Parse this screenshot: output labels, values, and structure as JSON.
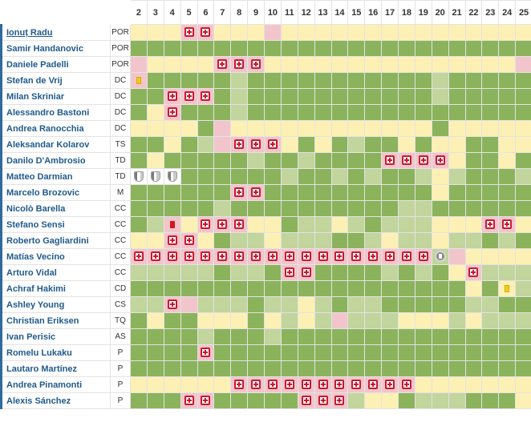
{
  "legend_colors": {
    "played": "#8bb35c",
    "partial": "#c1d59d",
    "bench": "#fdf0b4",
    "absent": "#f2c5cc"
  },
  "icon_types": {
    "I": "injury-icon",
    "Y": "yellow-card-icon",
    "R": "red-card-icon",
    "S": "dismissal-icon",
    "N": "national-team-icon"
  },
  "rounds": [
    "2",
    "3",
    "4",
    "5",
    "6",
    "7",
    "8",
    "9",
    "10",
    "11",
    "12",
    "13",
    "14",
    "15",
    "16",
    "17",
    "18",
    "19",
    "20",
    "21",
    "22",
    "23",
    "24",
    "25"
  ],
  "players": [
    {
      "name": "Ionuț Radu",
      "pos": "POR",
      "cells": [
        "y",
        "y",
        "y",
        "pI",
        "pI",
        "y",
        "y",
        "y",
        "p",
        "y",
        "y",
        "y",
        "y",
        "y",
        "y",
        "y",
        "y",
        "y",
        "y",
        "y",
        "y",
        "y",
        "y",
        "y"
      ]
    },
    {
      "name": "Samir Handanovic",
      "pos": "POR",
      "cells": [
        "g",
        "g",
        "g",
        "g",
        "g",
        "g",
        "g",
        "g",
        "g",
        "g",
        "g",
        "g",
        "g",
        "g",
        "g",
        "g",
        "g",
        "g",
        "g",
        "g",
        "g",
        "g",
        "g",
        "g"
      ]
    },
    {
      "name": "Daniele Padelli",
      "pos": "POR",
      "cells": [
        "p",
        "y",
        "y",
        "y",
        "y",
        "pI",
        "pI",
        "pI",
        "y",
        "y",
        "y",
        "y",
        "y",
        "y",
        "y",
        "y",
        "y",
        "y",
        "y",
        "y",
        "y",
        "y",
        "y",
        "p"
      ]
    },
    {
      "name": "Stefan de Vrij",
      "pos": "DC",
      "cells": [
        "pY",
        "g",
        "g",
        "g",
        "g",
        "g",
        "l",
        "g",
        "g",
        "g",
        "g",
        "g",
        "g",
        "g",
        "g",
        "g",
        "g",
        "g",
        "l",
        "g",
        "g",
        "g",
        "g",
        "g"
      ]
    },
    {
      "name": "Milan Skriniar",
      "pos": "DC",
      "cells": [
        "g",
        "g",
        "pI",
        "pI",
        "pI",
        "g",
        "l",
        "g",
        "g",
        "g",
        "g",
        "g",
        "g",
        "g",
        "g",
        "g",
        "g",
        "g",
        "l",
        "g",
        "g",
        "g",
        "g",
        "g"
      ]
    },
    {
      "name": "Alessandro Bastoni",
      "pos": "DC",
      "cells": [
        "g",
        "y",
        "pI",
        "g",
        "g",
        "g",
        "l",
        "g",
        "g",
        "g",
        "g",
        "g",
        "g",
        "g",
        "g",
        "g",
        "g",
        "g",
        "g",
        "g",
        "g",
        "g",
        "g",
        "g"
      ]
    },
    {
      "name": "Andrea Ranocchia",
      "pos": "DC",
      "cells": [
        "y",
        "y",
        "y",
        "y",
        "g",
        "p",
        "y",
        "y",
        "y",
        "y",
        "y",
        "y",
        "y",
        "y",
        "y",
        "y",
        "y",
        "y",
        "g",
        "y",
        "y",
        "y",
        "y",
        "y"
      ]
    },
    {
      "name": "Aleksandar Kolarov",
      "pos": "TS",
      "cells": [
        "g",
        "g",
        "y",
        "g",
        "l",
        "p",
        "pI",
        "pI",
        "pI",
        "y",
        "g",
        "y",
        "g",
        "l",
        "g",
        "g",
        "y",
        "g",
        "y",
        "y",
        "g",
        "g",
        "y",
        "y"
      ]
    },
    {
      "name": "Danilo D'Ambrosio",
      "pos": "TD",
      "cells": [
        "g",
        "y",
        "g",
        "g",
        "g",
        "g",
        "g",
        "l",
        "g",
        "g",
        "l",
        "g",
        "g",
        "g",
        "g",
        "pI",
        "pI",
        "pI",
        "pI",
        "y",
        "g",
        "g",
        "y",
        "g"
      ]
    },
    {
      "name": "Matteo Darmian",
      "pos": "TD",
      "cells": [
        "wN",
        "wN",
        "wN",
        "g",
        "g",
        "g",
        "g",
        "g",
        "g",
        "l",
        "g",
        "g",
        "l",
        "g",
        "l",
        "g",
        "g",
        "l",
        "y",
        "l",
        "g",
        "g",
        "g",
        "l"
      ]
    },
    {
      "name": "Marcelo Brozovic",
      "pos": "M",
      "cells": [
        "g",
        "g",
        "g",
        "g",
        "g",
        "g",
        "pI",
        "pI",
        "g",
        "g",
        "g",
        "g",
        "g",
        "g",
        "g",
        "g",
        "g",
        "g",
        "y",
        "g",
        "g",
        "g",
        "g",
        "g"
      ]
    },
    {
      "name": "Nicolò Barella",
      "pos": "CC",
      "cells": [
        "g",
        "g",
        "g",
        "g",
        "g",
        "l",
        "g",
        "g",
        "g",
        "g",
        "g",
        "g",
        "g",
        "g",
        "g",
        "g",
        "l",
        "l",
        "g",
        "g",
        "g",
        "g",
        "g",
        "g"
      ]
    },
    {
      "name": "Stefano Sensi",
      "pos": "CC",
      "cells": [
        "g",
        "l",
        "pR",
        "y",
        "pI",
        "pI",
        "pI",
        "y",
        "y",
        "g",
        "l",
        "l",
        "y",
        "l",
        "g",
        "l",
        "l",
        "l",
        "y",
        "y",
        "y",
        "pI",
        "pI",
        "y"
      ]
    },
    {
      "name": "Roberto Gagliardini",
      "pos": "CC",
      "cells": [
        "y",
        "y",
        "pI",
        "pI",
        "y",
        "g",
        "l",
        "l",
        "y",
        "l",
        "l",
        "l",
        "g",
        "g",
        "l",
        "y",
        "l",
        "l",
        "y",
        "l",
        "l",
        "g",
        "l",
        "g"
      ]
    },
    {
      "name": "Matías Vecino",
      "pos": "CC",
      "cells": [
        "pI",
        "pI",
        "pI",
        "pI",
        "pI",
        "pI",
        "pI",
        "pI",
        "pI",
        "pI",
        "pI",
        "pI",
        "pI",
        "pI",
        "pI",
        "pI",
        "pI",
        "pI",
        "lS",
        "p",
        "y",
        "y",
        "y",
        "y"
      ]
    },
    {
      "name": "Arturo Vidal",
      "pos": "CC",
      "cells": [
        "l",
        "l",
        "l",
        "l",
        "l",
        "g",
        "l",
        "l",
        "g",
        "pI",
        "pI",
        "g",
        "g",
        "g",
        "g",
        "l",
        "g",
        "l",
        "g",
        "y",
        "pI",
        "l",
        "l",
        "l"
      ]
    },
    {
      "name": "Achraf Hakimi",
      "pos": "CD",
      "cells": [
        "g",
        "g",
        "g",
        "g",
        "g",
        "g",
        "g",
        "g",
        "g",
        "g",
        "g",
        "g",
        "g",
        "g",
        "g",
        "g",
        "g",
        "g",
        "g",
        "g",
        "y",
        "g",
        "yY",
        "l"
      ]
    },
    {
      "name": "Ashley Young",
      "pos": "CS",
      "cells": [
        "l",
        "l",
        "pI",
        "p",
        "l",
        "l",
        "l",
        "g",
        "l",
        "l",
        "y",
        "l",
        "g",
        "l",
        "l",
        "g",
        "g",
        "g",
        "g",
        "g",
        "l",
        "l",
        "g",
        "g"
      ]
    },
    {
      "name": "Christian Eriksen",
      "pos": "TQ",
      "cells": [
        "g",
        "y",
        "g",
        "g",
        "y",
        "y",
        "y",
        "g",
        "y",
        "l",
        "y",
        "l",
        "p",
        "l",
        "l",
        "l",
        "y",
        "y",
        "y",
        "l",
        "y",
        "l",
        "l",
        "l"
      ]
    },
    {
      "name": "Ivan Perisic",
      "pos": "AS",
      "cells": [
        "g",
        "g",
        "g",
        "g",
        "l",
        "g",
        "g",
        "g",
        "l",
        "g",
        "g",
        "g",
        "g",
        "g",
        "g",
        "g",
        "g",
        "g",
        "g",
        "g",
        "g",
        "g",
        "g",
        "g"
      ]
    },
    {
      "name": "Romelu Lukaku",
      "pos": "P",
      "cells": [
        "g",
        "g",
        "g",
        "g",
        "pI",
        "g",
        "g",
        "g",
        "g",
        "g",
        "g",
        "g",
        "g",
        "g",
        "g",
        "g",
        "g",
        "g",
        "g",
        "g",
        "g",
        "g",
        "g",
        "g"
      ]
    },
    {
      "name": "Lautaro Martínez",
      "pos": "P",
      "cells": [
        "g",
        "g",
        "g",
        "g",
        "g",
        "g",
        "g",
        "g",
        "g",
        "g",
        "g",
        "g",
        "g",
        "g",
        "g",
        "g",
        "g",
        "g",
        "g",
        "g",
        "g",
        "g",
        "g",
        "g"
      ]
    },
    {
      "name": "Andrea Pinamonti",
      "pos": "P",
      "cells": [
        "y",
        "y",
        "y",
        "y",
        "y",
        "y",
        "pI",
        "pI",
        "pI",
        "pI",
        "pI",
        "pI",
        "pI",
        "pI",
        "pI",
        "pI",
        "pI",
        "y",
        "y",
        "y",
        "y",
        "y",
        "y",
        "y"
      ]
    },
    {
      "name": "Alexis Sánchez",
      "pos": "P",
      "cells": [
        "g",
        "g",
        "g",
        "pI",
        "pI",
        "g",
        "g",
        "g",
        "g",
        "g",
        "pI",
        "pI",
        "pI",
        "l",
        "y",
        "y",
        "g",
        "l",
        "l",
        "l",
        "g",
        "g",
        "g",
        "y"
      ]
    }
  ]
}
